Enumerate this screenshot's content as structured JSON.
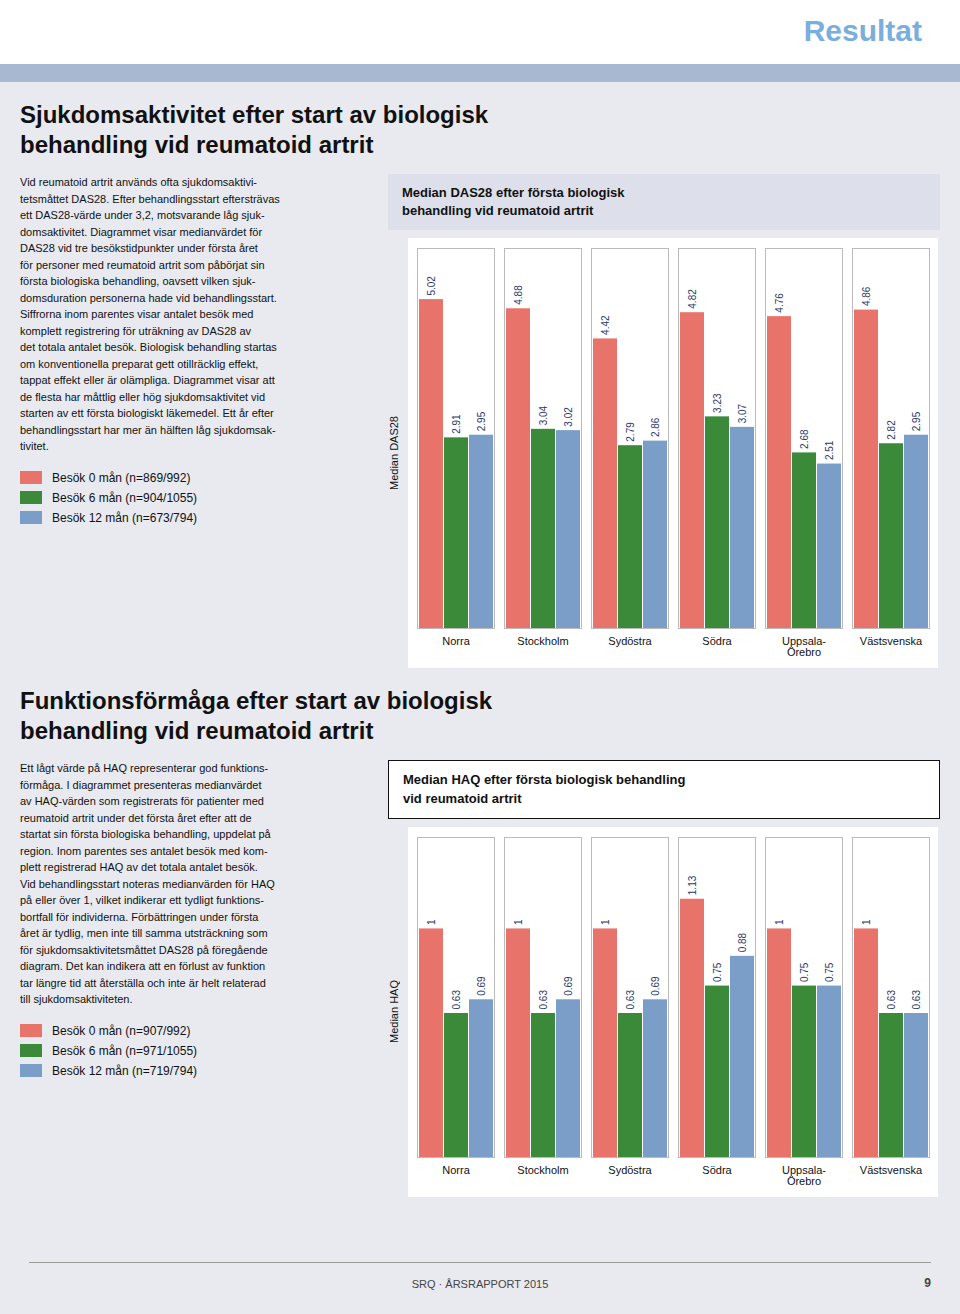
{
  "chart_data": [
    {
      "type": "bar",
      "title": "Median DAS28 efter första biologisk\nbehandling vid reumatoid artrit",
      "ylabel": "Median DAS28",
      "categories": [
        "Norra",
        "Stockholm",
        "Sydöstra",
        "Södra",
        "Uppsala-\nÖrebro",
        "Västsvenska"
      ],
      "series": [
        {
          "name": "Besök 0 mån (n=869/992)",
          "color": "#e8736a",
          "values": [
            5.02,
            4.88,
            4.42,
            4.82,
            4.76,
            4.86
          ]
        },
        {
          "name": "Besök 6 mån (n=904/1055)",
          "color": "#3a8a3a",
          "values": [
            2.91,
            3.04,
            2.79,
            3.23,
            2.68,
            2.82
          ]
        },
        {
          "name": "Besök 12 mån (n=673/794)",
          "color": "#7b9ec8",
          "values": [
            2.95,
            3.02,
            2.86,
            3.07,
            2.51,
            2.95
          ]
        }
      ],
      "ylim": [
        0,
        5.8
      ],
      "grid": false,
      "data_labels": true,
      "tick_labels": "x",
      "annotations": [
        "Resultat",
        "Sjukdomsaktivitet efter start av biologisk\nbehandling vid reumatoid artrit",
        "Vid reumatoid artrit används ofta sjukdomsaktivi-\ntetsmåttet DAS28. Efter behandlingsstart eftersträvas\nett DAS28-värde under 3,2, motsvarande låg sjuk-\ndomsaktivitet. Diagrammet visar medianvärdet för\nDAS28 vid tre besökstidpunkter under första året\nför personer med reumatoid artrit som påbörjat sin\nförsta biologiska behandling, oavsett vilken sjuk-\ndomsduration personerna hade vid behandlingsstart.\nSiffrorna inom parentes visar antalet besök med\nkomplett registrering för uträkning av DAS28 av\ndet totala antalet besök. Biologisk behandling startas\nom konventionella preparat gett otillräcklig effekt,\ntappat effekt eller är olämpliga. Diagrammet visar att\nde flesta har måttlig eller hög sjukdomsaktivitet vid\nstarten av ett första biologiskt läkemedel. Ett år efter\nbehandlingsstart har mer än hälften låg sjukdomsak-\ntivitet."
      ]
    },
    {
      "type": "bar",
      "title": "Median HAQ efter första biologisk behandling\nvid reumatoid artrit",
      "ylabel": "Median HAQ",
      "categories": [
        "Norra",
        "Stockholm",
        "Sydöstra",
        "Södra",
        "Uppsala-\nÖrebro",
        "Västsvenska"
      ],
      "series": [
        {
          "name": "Besök 0 mån (n=907/992)",
          "color": "#e8736a",
          "values": [
            1,
            1,
            1,
            1.13,
            1,
            1
          ]
        },
        {
          "name": "Besök 6 mån (n=971/1055)",
          "color": "#3a8a3a",
          "values": [
            0.63,
            0.63,
            0.63,
            0.75,
            0.75,
            0.63
          ]
        },
        {
          "name": "Besök 12 mån (n=719/794)",
          "color": "#7b9ec8",
          "values": [
            0.69,
            0.69,
            0.69,
            0.88,
            0.75,
            0.63
          ]
        }
      ],
      "ylim": [
        0,
        1.4
      ],
      "grid": false,
      "data_labels": true,
      "tick_labels": "x",
      "annotations": [
        "Funktionsförmåga efter start av biologisk\nbehandling vid reumatoid artrit",
        "Ett lågt värde på HAQ representerar god funktions-\nförmåga. I diagrammet presenteras medianvärdet\nav HAQ-värden som registrerats för patienter med\nreumatoid artrit under det första året efter att de\nstartat sin första biologiska behandling, uppdelat på\nregion. Inom parentes ses antalet besök med kom-\nplett registrerad HAQ av det totala antalet besök.\nVid behandlingsstart noteras medianvärden för HAQ\npå eller över 1, vilket indikerar ett tydligt funktions-\nbortfall för individerna. Förbättringen under första\nåret är tydlig, men inte till samma utsträckning som\nför sjukdomsaktivitetsmåttet DAS28 på föregående\ndiagram. Det kan indikera att en förlust av funktion\ntar längre tid att återställa och inte är helt relaterad\ntill sjukdomsaktiviteten.",
        "SRQ · ÅRSRAPPORT 2015",
        "9"
      ]
    }
  ]
}
